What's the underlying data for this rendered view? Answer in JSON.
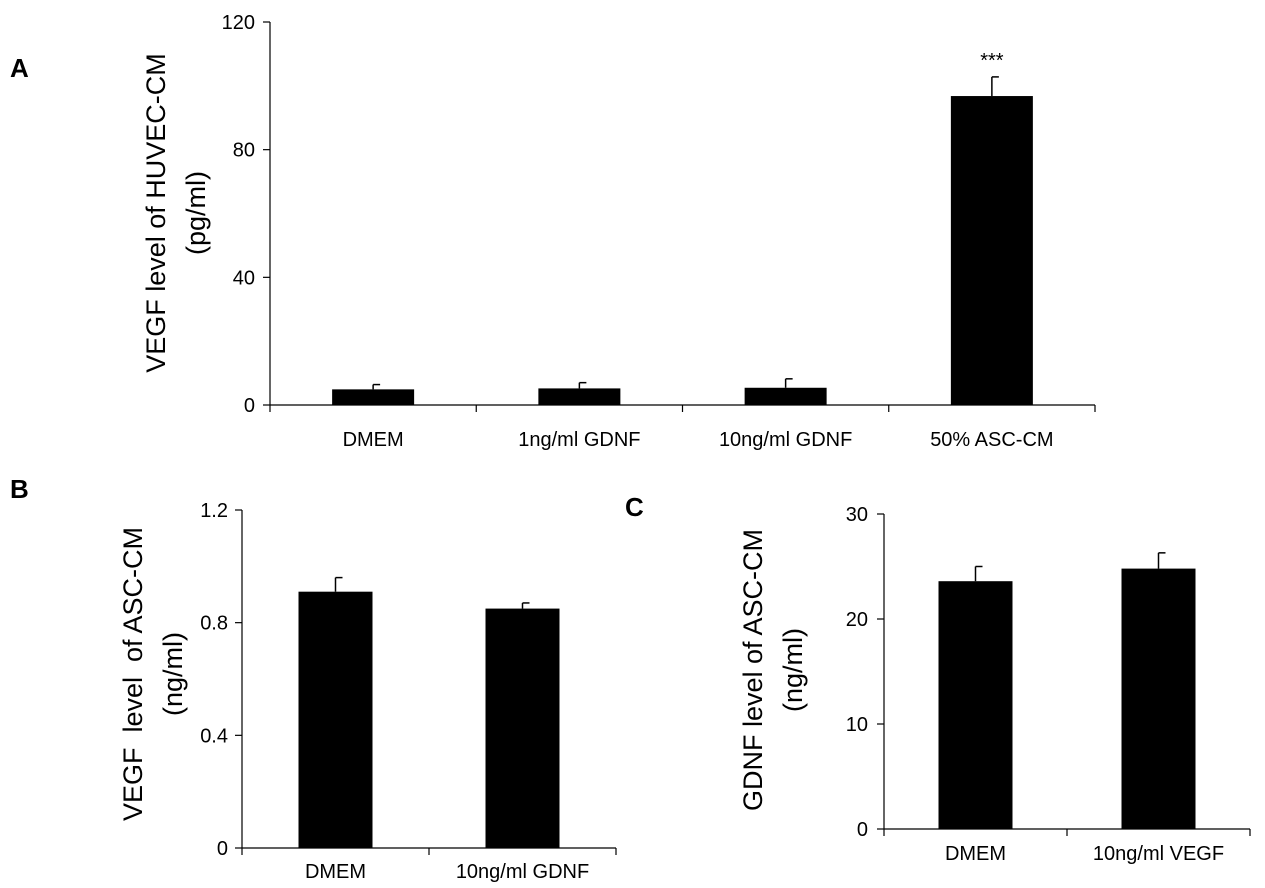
{
  "chart_data": [
    {
      "panel": "A",
      "type": "bar",
      "ylabel": [
        "VEGF level of HUVEC-CM",
        "(pg/ml)"
      ],
      "ylim": [
        0,
        120
      ],
      "yticks": [
        "0",
        "40",
        "80",
        "120"
      ],
      "categories": [
        "DMEM",
        "1ng/ml GDNF",
        "10ng/ml GDNF",
        "50% ASC-CM"
      ],
      "values": [
        4.9,
        5.2,
        5.4,
        96.8
      ],
      "errors": [
        1.5,
        1.8,
        2.8,
        6.0
      ],
      "annotations": [
        "",
        "",
        "",
        "***"
      ],
      "bar_color": "#000000",
      "grid": false
    },
    {
      "panel": "B",
      "type": "bar",
      "ylabel": [
        "VEGF  level  of ASC-CM",
        "(ng/ml)"
      ],
      "ylim": [
        0,
        1.2
      ],
      "yticks": [
        "0",
        "0.4",
        "0.8",
        "1.2"
      ],
      "categories": [
        "DMEM",
        "10ng/ml GDNF"
      ],
      "values": [
        0.91,
        0.85
      ],
      "errors": [
        0.05,
        0.02
      ],
      "annotations": [
        "",
        ""
      ],
      "bar_color": "#000000",
      "grid": false
    },
    {
      "panel": "C",
      "type": "bar",
      "ylabel": [
        "GDNF level of ASC-CM",
        "(ng/ml)"
      ],
      "ylim": [
        0,
        30
      ],
      "yticks": [
        "0",
        "10",
        "20",
        "30"
      ],
      "categories": [
        "DMEM",
        "10ng/ml VEGF"
      ],
      "values": [
        23.6,
        24.8
      ],
      "errors": [
        1.4,
        1.5
      ],
      "annotations": [
        "",
        ""
      ],
      "bar_color": "#000000",
      "grid": false
    }
  ]
}
